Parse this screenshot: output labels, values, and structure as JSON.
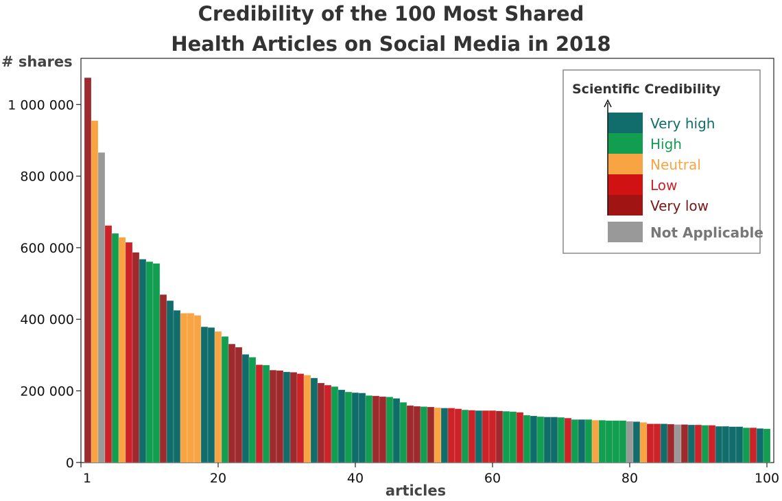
{
  "chart_data": {
    "type": "bar",
    "title": [
      "Credibility of the 100 Most Shared",
      "Health Articles on Social Media in 2018"
    ],
    "ylabel": "# shares",
    "xlabel": "articles",
    "ylim": [
      0,
      1130000
    ],
    "xlim": [
      1,
      100
    ],
    "yticks": [
      0,
      200000,
      400000,
      600000,
      800000,
      1000000
    ],
    "ytick_labels": [
      "0",
      "200 000",
      "400 000",
      "600 000",
      "800 000",
      "1 000 000"
    ],
    "xticks": [
      1,
      20,
      40,
      60,
      80,
      100
    ],
    "xtick_labels": [
      "1",
      "20",
      "40",
      "60",
      "80",
      "100"
    ],
    "grid": false,
    "legend": {
      "title": "Scientific Credibility",
      "placement": "top-right",
      "items": [
        {
          "key": "VH",
          "label": "Very high",
          "color": "#116d6b"
        },
        {
          "key": "H",
          "label": "High",
          "color": "#119e50"
        },
        {
          "key": "N",
          "label": "Neutral",
          "color": "#f9a443"
        },
        {
          "key": "L",
          "label": "Low",
          "color": "#d01212"
        },
        {
          "key": "VL",
          "label": "Very low",
          "color": "#a01414"
        },
        {
          "key": "NA",
          "label": "Not Applicable",
          "color": "#999999"
        }
      ]
    },
    "bar_colors": {
      "VH": "#116d6b",
      "H": "#119e50",
      "N": "#f9a443",
      "L": "#cc2228",
      "VL": "#9e2a2e",
      "NA": "#999999"
    },
    "label_colors": {
      "VH": "#116d6b",
      "H": "#119e50",
      "N": "#f9a443",
      "L": "#cc2228",
      "VL": "#7a1515",
      "NA": "#777777"
    },
    "articles": [
      1,
      2,
      3,
      4,
      5,
      6,
      7,
      8,
      9,
      10,
      11,
      12,
      13,
      14,
      15,
      16,
      17,
      18,
      19,
      20,
      21,
      22,
      23,
      24,
      25,
      26,
      27,
      28,
      29,
      30,
      31,
      32,
      33,
      34,
      35,
      36,
      37,
      38,
      39,
      40,
      41,
      42,
      43,
      44,
      45,
      46,
      47,
      48,
      49,
      50,
      51,
      52,
      53,
      54,
      55,
      56,
      57,
      58,
      59,
      60,
      61,
      62,
      63,
      64,
      65,
      66,
      67,
      68,
      69,
      70,
      71,
      72,
      73,
      74,
      75,
      76,
      77,
      78,
      79,
      80,
      81,
      82,
      83,
      84,
      85,
      86,
      87,
      88,
      89,
      90,
      91,
      92,
      93,
      94,
      95,
      96,
      97,
      98,
      99,
      100
    ],
    "values": [
      1075000,
      955000,
      866000,
      662000,
      640000,
      629000,
      615000,
      587000,
      568000,
      561000,
      556000,
      469000,
      452000,
      425000,
      417000,
      417000,
      411000,
      379000,
      377000,
      366000,
      352000,
      331000,
      322000,
      302000,
      294000,
      273000,
      272000,
      258000,
      257000,
      253000,
      252000,
      248000,
      244000,
      236000,
      222000,
      216000,
      212000,
      203000,
      197000,
      195000,
      194000,
      187000,
      186000,
      184000,
      183000,
      179000,
      168000,
      159000,
      157000,
      156000,
      155000,
      153000,
      152000,
      152000,
      150000,
      147000,
      146000,
      145000,
      145000,
      145000,
      144000,
      143000,
      142000,
      140000,
      132000,
      130000,
      128000,
      127000,
      127000,
      126000,
      124000,
      120000,
      120000,
      120000,
      118000,
      118000,
      117000,
      117000,
      117000,
      115000,
      114000,
      112000,
      108000,
      108000,
      108000,
      107000,
      106000,
      106000,
      105000,
      105000,
      104000,
      104000,
      101000,
      101000,
      100000,
      100000,
      97000,
      97000,
      95000,
      94000
    ],
    "credibility": [
      "VL",
      "N",
      "NA",
      "L",
      "H",
      "N",
      "L",
      "VL",
      "VH",
      "H",
      "H",
      "VL",
      "VH",
      "VH",
      "N",
      "N",
      "N",
      "VH",
      "VH",
      "N",
      "H",
      "VL",
      "VL",
      "VH",
      "H",
      "L",
      "H",
      "VL",
      "VL",
      "VH",
      "VL",
      "L",
      "N",
      "VH",
      "VL",
      "L",
      "H",
      "VH",
      "H",
      "VH",
      "VH",
      "H",
      "VL",
      "VL",
      "H",
      "VH",
      "H",
      "VL",
      "VL",
      "H",
      "VL",
      "N",
      "VH",
      "L",
      "L",
      "H",
      "L",
      "VH",
      "L",
      "L",
      "VL",
      "H",
      "H",
      "L",
      "H",
      "VH",
      "H",
      "VH",
      "VH",
      "H",
      "L",
      "H",
      "VH",
      "H",
      "N",
      "H",
      "H",
      "H",
      "H",
      "NA",
      "VH",
      "N",
      "L",
      "L",
      "VH",
      "VL",
      "NA",
      "VL",
      "VH",
      "L",
      "H",
      "L",
      "VH",
      "VH",
      "VH",
      "VH",
      "H",
      "L",
      "VH",
      "H"
    ]
  }
}
